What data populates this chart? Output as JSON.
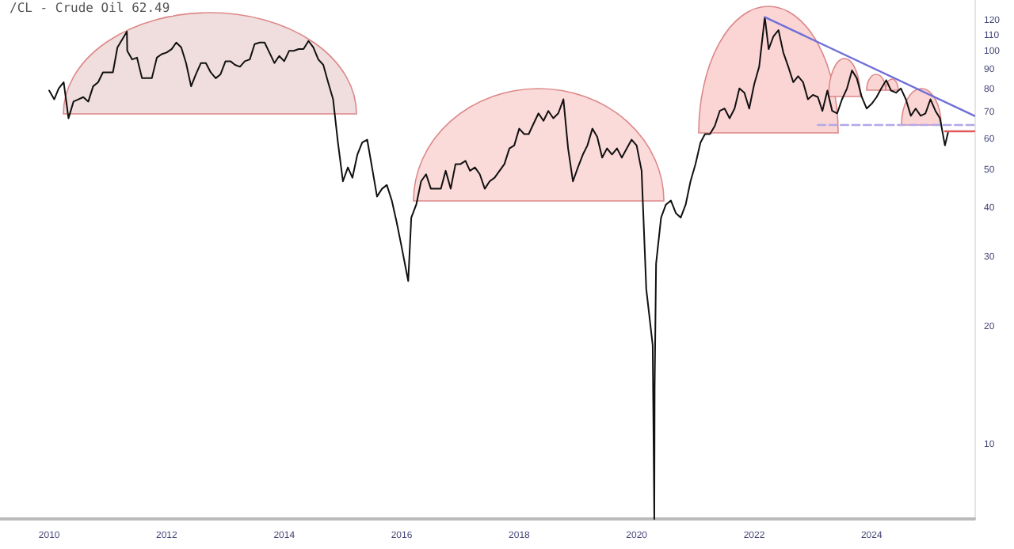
{
  "chart_data": {
    "type": "line",
    "title": "/CL - Crude Oil 62.49",
    "xlim": [
      "2009-03",
      "2025-10"
    ],
    "xticks": [
      "2010",
      "2012",
      "2014",
      "2016",
      "2018",
      "2020",
      "2022",
      "2024"
    ],
    "ylim": [
      6.5,
      136
    ],
    "yticks": [
      10,
      20,
      30,
      40,
      50,
      60,
      70,
      80,
      90,
      100,
      110,
      120
    ],
    "log": true,
    "grid": false,
    "series": [
      {
        "color": "#111111",
        "x": [
          "2010-01",
          "2010-02",
          "2010-03",
          "2010-04",
          "2010-05",
          "2010-06",
          "2010-07",
          "2010-08",
          "2010-09",
          "2010-10",
          "2010-11",
          "2010-12",
          "2011-01",
          "2011-02",
          "2011-03",
          "2011-04-29",
          "2011-05",
          "2011-06",
          "2011-07",
          "2011-08",
          "2011-09",
          "2011-10",
          "2011-11",
          "2011-12",
          "2012-01",
          "2012-02",
          "2012-03",
          "2012-04",
          "2012-05",
          "2012-06",
          "2012-07",
          "2012-08",
          "2012-09",
          "2012-10",
          "2012-11",
          "2012-12",
          "2013-01",
          "2013-02",
          "2013-03",
          "2013-04",
          "2013-05",
          "2013-06",
          "2013-07",
          "2013-08",
          "2013-09",
          "2013-10",
          "2013-11",
          "2013-12",
          "2014-01",
          "2014-02",
          "2014-03",
          "2014-04",
          "2014-05",
          "2014-06",
          "2014-07",
          "2014-08",
          "2014-09",
          "2014-10",
          "2014-11",
          "2014-12",
          "2015-01",
          "2015-02",
          "2015-03",
          "2015-04",
          "2015-05",
          "2015-06",
          "2015-07",
          "2015-08",
          "2015-09",
          "2015-10",
          "2015-11",
          "2015-12",
          "2016-01",
          "2016-02-11",
          "2016-03",
          "2016-04",
          "2016-05",
          "2016-06",
          "2016-07",
          "2016-08",
          "2016-09",
          "2016-10",
          "2016-11",
          "2016-12",
          "2017-01",
          "2017-02",
          "2017-03",
          "2017-04",
          "2017-05",
          "2017-06",
          "2017-07",
          "2017-08",
          "2017-09",
          "2017-10",
          "2017-11",
          "2017-12",
          "2018-01",
          "2018-02",
          "2018-03",
          "2018-04",
          "2018-05",
          "2018-06",
          "2018-07",
          "2018-08",
          "2018-09",
          "2018-10-03",
          "2018-11",
          "2018-12",
          "2019-01",
          "2019-02",
          "2019-03",
          "2019-04",
          "2019-05",
          "2019-06",
          "2019-07",
          "2019-08",
          "2019-09",
          "2019-10",
          "2019-11",
          "2019-12",
          "2020-01",
          "2020-02",
          "2020-03",
          "2020-04-10",
          "2020-04-20",
          "2020-04-22",
          "2020-05",
          "2020-06",
          "2020-07",
          "2020-08",
          "2020-09",
          "2020-10",
          "2020-11",
          "2020-12",
          "2021-01",
          "2021-02",
          "2021-03",
          "2021-04",
          "2021-05",
          "2021-06",
          "2021-07",
          "2021-08",
          "2021-09",
          "2021-10",
          "2021-11",
          "2021-12",
          "2022-01",
          "2022-02",
          "2022-03-08",
          "2022-04",
          "2022-05",
          "2022-06",
          "2022-07",
          "2022-08",
          "2022-09",
          "2022-10",
          "2022-11",
          "2022-12",
          "2023-01",
          "2023-02",
          "2023-03",
          "2023-04",
          "2023-05",
          "2023-06",
          "2023-07",
          "2023-08",
          "2023-09",
          "2023-10",
          "2023-11",
          "2023-12",
          "2024-01",
          "2024-02",
          "2024-03",
          "2024-04",
          "2024-05",
          "2024-06",
          "2024-07",
          "2024-08",
          "2024-09",
          "2024-10",
          "2024-11",
          "2024-12",
          "2025-01",
          "2025-02",
          "2025-03",
          "2025-04",
          "2025-04-20"
        ],
        "values": [
          80,
          76,
          81,
          84,
          68,
          75,
          76,
          77,
          75,
          82,
          84,
          89,
          89,
          89,
          103,
          113,
          101,
          96,
          97,
          86,
          86,
          86,
          97,
          99,
          100,
          102,
          106,
          103,
          94,
          82,
          88,
          94,
          94,
          89,
          86,
          88,
          95,
          95,
          93,
          92,
          95,
          96,
          105,
          106,
          106,
          100,
          94,
          98,
          95,
          101,
          101,
          102,
          102,
          107,
          103,
          96,
          93,
          84,
          76,
          59,
          47,
          51,
          48,
          55,
          59,
          60,
          51,
          43,
          45,
          46,
          42,
          37,
          32,
          26.2,
          38,
          41,
          47,
          49,
          45,
          45,
          45,
          50,
          45,
          52,
          52,
          53,
          50,
          51,
          49,
          45,
          47,
          48,
          50,
          52,
          57,
          58,
          64,
          62,
          62,
          66,
          70,
          67,
          71,
          68,
          70,
          76,
          57,
          47,
          51,
          55,
          58,
          64,
          61,
          54,
          57,
          55,
          57,
          54,
          57,
          60,
          58,
          50,
          25,
          18,
          6.5,
          14,
          29,
          38,
          41,
          42,
          39,
          38,
          41,
          47,
          52,
          59,
          62,
          62,
          65,
          71,
          72,
          68,
          72,
          81,
          79,
          72,
          83,
          92,
          123,
          102,
          110,
          114,
          100,
          92,
          84,
          87,
          84,
          76,
          78,
          77,
          71,
          80,
          71,
          70,
          76,
          81,
          90,
          86,
          77,
          72,
          74,
          77,
          81,
          85,
          80,
          79,
          81,
          76,
          69,
          72,
          69,
          70,
          76,
          71,
          68,
          58,
          62.49
        ]
      },
      {
        "color": "#6f6fd8",
        "x": [
          "2022-03-08",
          "2025-10"
        ],
        "values": [
          123,
          69
        ]
      },
      {
        "color": "#b0a8e8",
        "line_style": "dashed",
        "x": [
          "2023-02",
          "2025-10"
        ],
        "values": [
          65.4,
          65.4
        ]
      },
      {
        "color": "#e05a5a",
        "x": [
          "2025-04",
          "2025-10"
        ],
        "values": [
          63,
          63
        ]
      }
    ]
  }
}
